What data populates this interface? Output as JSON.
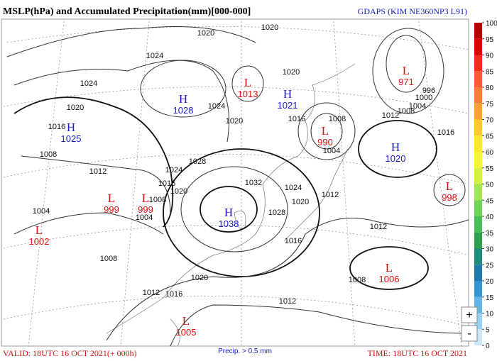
{
  "header": {
    "title": "MSLP(hPa) and Accumulated Precipitation(mm)[000-000]",
    "model": "GDAPS (KIM NE360NP3 L91)"
  },
  "pressure_centers": [
    {
      "label": "H",
      "value": 1028
    },
    {
      "label": "L",
      "value": 1013
    },
    {
      "label": "H",
      "value": 1021
    },
    {
      "label": "H",
      "value": 1025
    },
    {
      "label": "L",
      "value": 990
    },
    {
      "label": "L",
      "value": 971
    },
    {
      "label": "H",
      "value": 1020
    },
    {
      "label": "L",
      "value": 998
    },
    {
      "label": "L",
      "value": 999
    },
    {
      "label": "L",
      "value": 999
    },
    {
      "label": "L",
      "value": 1002
    },
    {
      "label": "H",
      "value": 1038
    },
    {
      "label": "L",
      "value": 1006
    },
    {
      "label": "L",
      "value": 1005
    }
  ],
  "isobar_labels": [
    1020,
    1020,
    1024,
    1024,
    1020,
    1016,
    1008,
    1012,
    1028,
    1032,
    1024,
    1016,
    1020,
    1008,
    1004,
    1004,
    1020,
    1024,
    1020,
    1016,
    1008,
    1004,
    1012,
    1008,
    1016,
    1012,
    1028,
    1024,
    1020,
    1012,
    1016,
    1020,
    1016,
    1012,
    1008,
    1012,
    1008,
    996,
    1004,
    1000
  ],
  "colorbar": {
    "ticks": [
      100,
      95,
      90,
      85,
      80,
      75,
      70,
      65,
      60,
      55,
      50,
      45,
      40,
      35,
      30,
      25,
      20,
      15,
      10,
      5,
      0
    ],
    "colors": [
      "#b40000",
      "#dc0000",
      "#f52a1e",
      "#ff5a32",
      "#ff7d32",
      "#ffa032",
      "#ffc832",
      "#ffe632",
      "#f5f53c",
      "#d2f046",
      "#a0e650",
      "#6ed25a",
      "#46be5a",
      "#2da050",
      "#1e8c7d",
      "#1e78aa",
      "#3296d2",
      "#64b4e6",
      "#96d2f0",
      "#c8e6f5"
    ]
  },
  "footer": {
    "valid": "VALID: 18UTC 16 OCT 2021(+ 000h)",
    "precip_note": "Precip. > 0.5 mm",
    "time": "TIME: 18UTC 16 OCT 2021"
  },
  "zoom": {
    "in": "+",
    "out": "-"
  }
}
